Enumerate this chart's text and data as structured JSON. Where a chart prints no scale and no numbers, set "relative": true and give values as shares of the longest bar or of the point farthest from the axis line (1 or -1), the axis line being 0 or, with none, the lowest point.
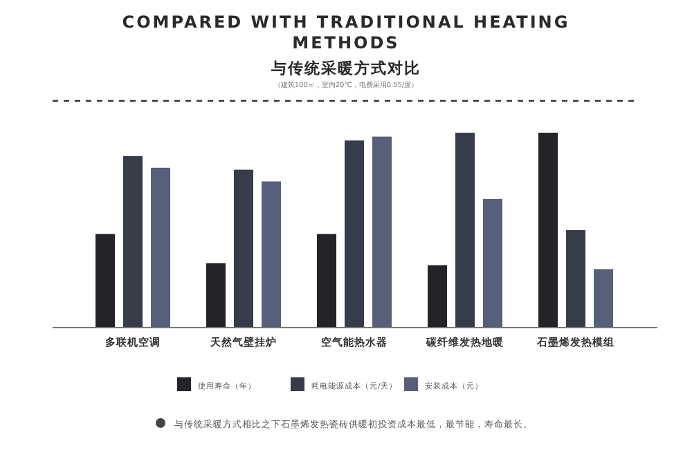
{
  "chart_data": {
    "type": "bar",
    "relative": true,
    "title": "COMPARED WITH TRADITIONAL HEATING METHODS",
    "subtitle": "与传统采暖方式对比",
    "categories": [
      "多联机空调",
      "天然气壁挂炉",
      "空气能热水器",
      "碳纤维发热地暖",
      "石墨烯发热模组"
    ],
    "series": [
      {
        "name": "使用寿命（年）",
        "color": "#222428",
        "values": [
          0.48,
          0.33,
          0.48,
          0.32,
          1.0
        ]
      },
      {
        "name": "耗电能源成本（元/天）",
        "color": "#363c4a",
        "values": [
          0.88,
          0.81,
          0.96,
          1.0,
          0.5
        ]
      },
      {
        "name": "安装成本（元）",
        "color": "#56607a",
        "values": [
          0.82,
          0.75,
          0.98,
          0.66,
          0.3
        ]
      }
    ],
    "legend": "bottom",
    "annotations": [
      "（建筑100㎡，室内20℃，电费采用0.55/度）",
      "与传统采暖方式相比之下石墨烯发热瓷砖供暖初投资成本最低，最节能，寿命最长。"
    ]
  }
}
